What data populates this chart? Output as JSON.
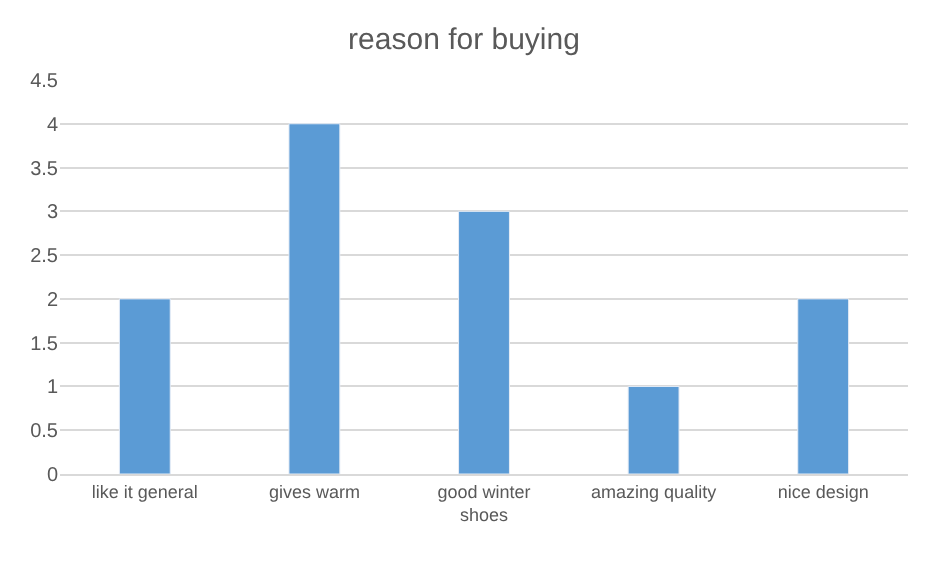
{
  "chart_data": {
    "type": "bar",
    "title": "reason for buying",
    "categories": [
      "like it general",
      "gives warm",
      "good winter shoes",
      "amazing quality",
      "nice design"
    ],
    "values": [
      2,
      4,
      3,
      1,
      2
    ],
    "color": "#5b9bd5",
    "ylim": [
      0,
      4.5
    ],
    "yticks": [
      0,
      0.5,
      1,
      1.5,
      2,
      2.5,
      3,
      3.5,
      4,
      4.5
    ],
    "grid": "y",
    "legend": false
  }
}
